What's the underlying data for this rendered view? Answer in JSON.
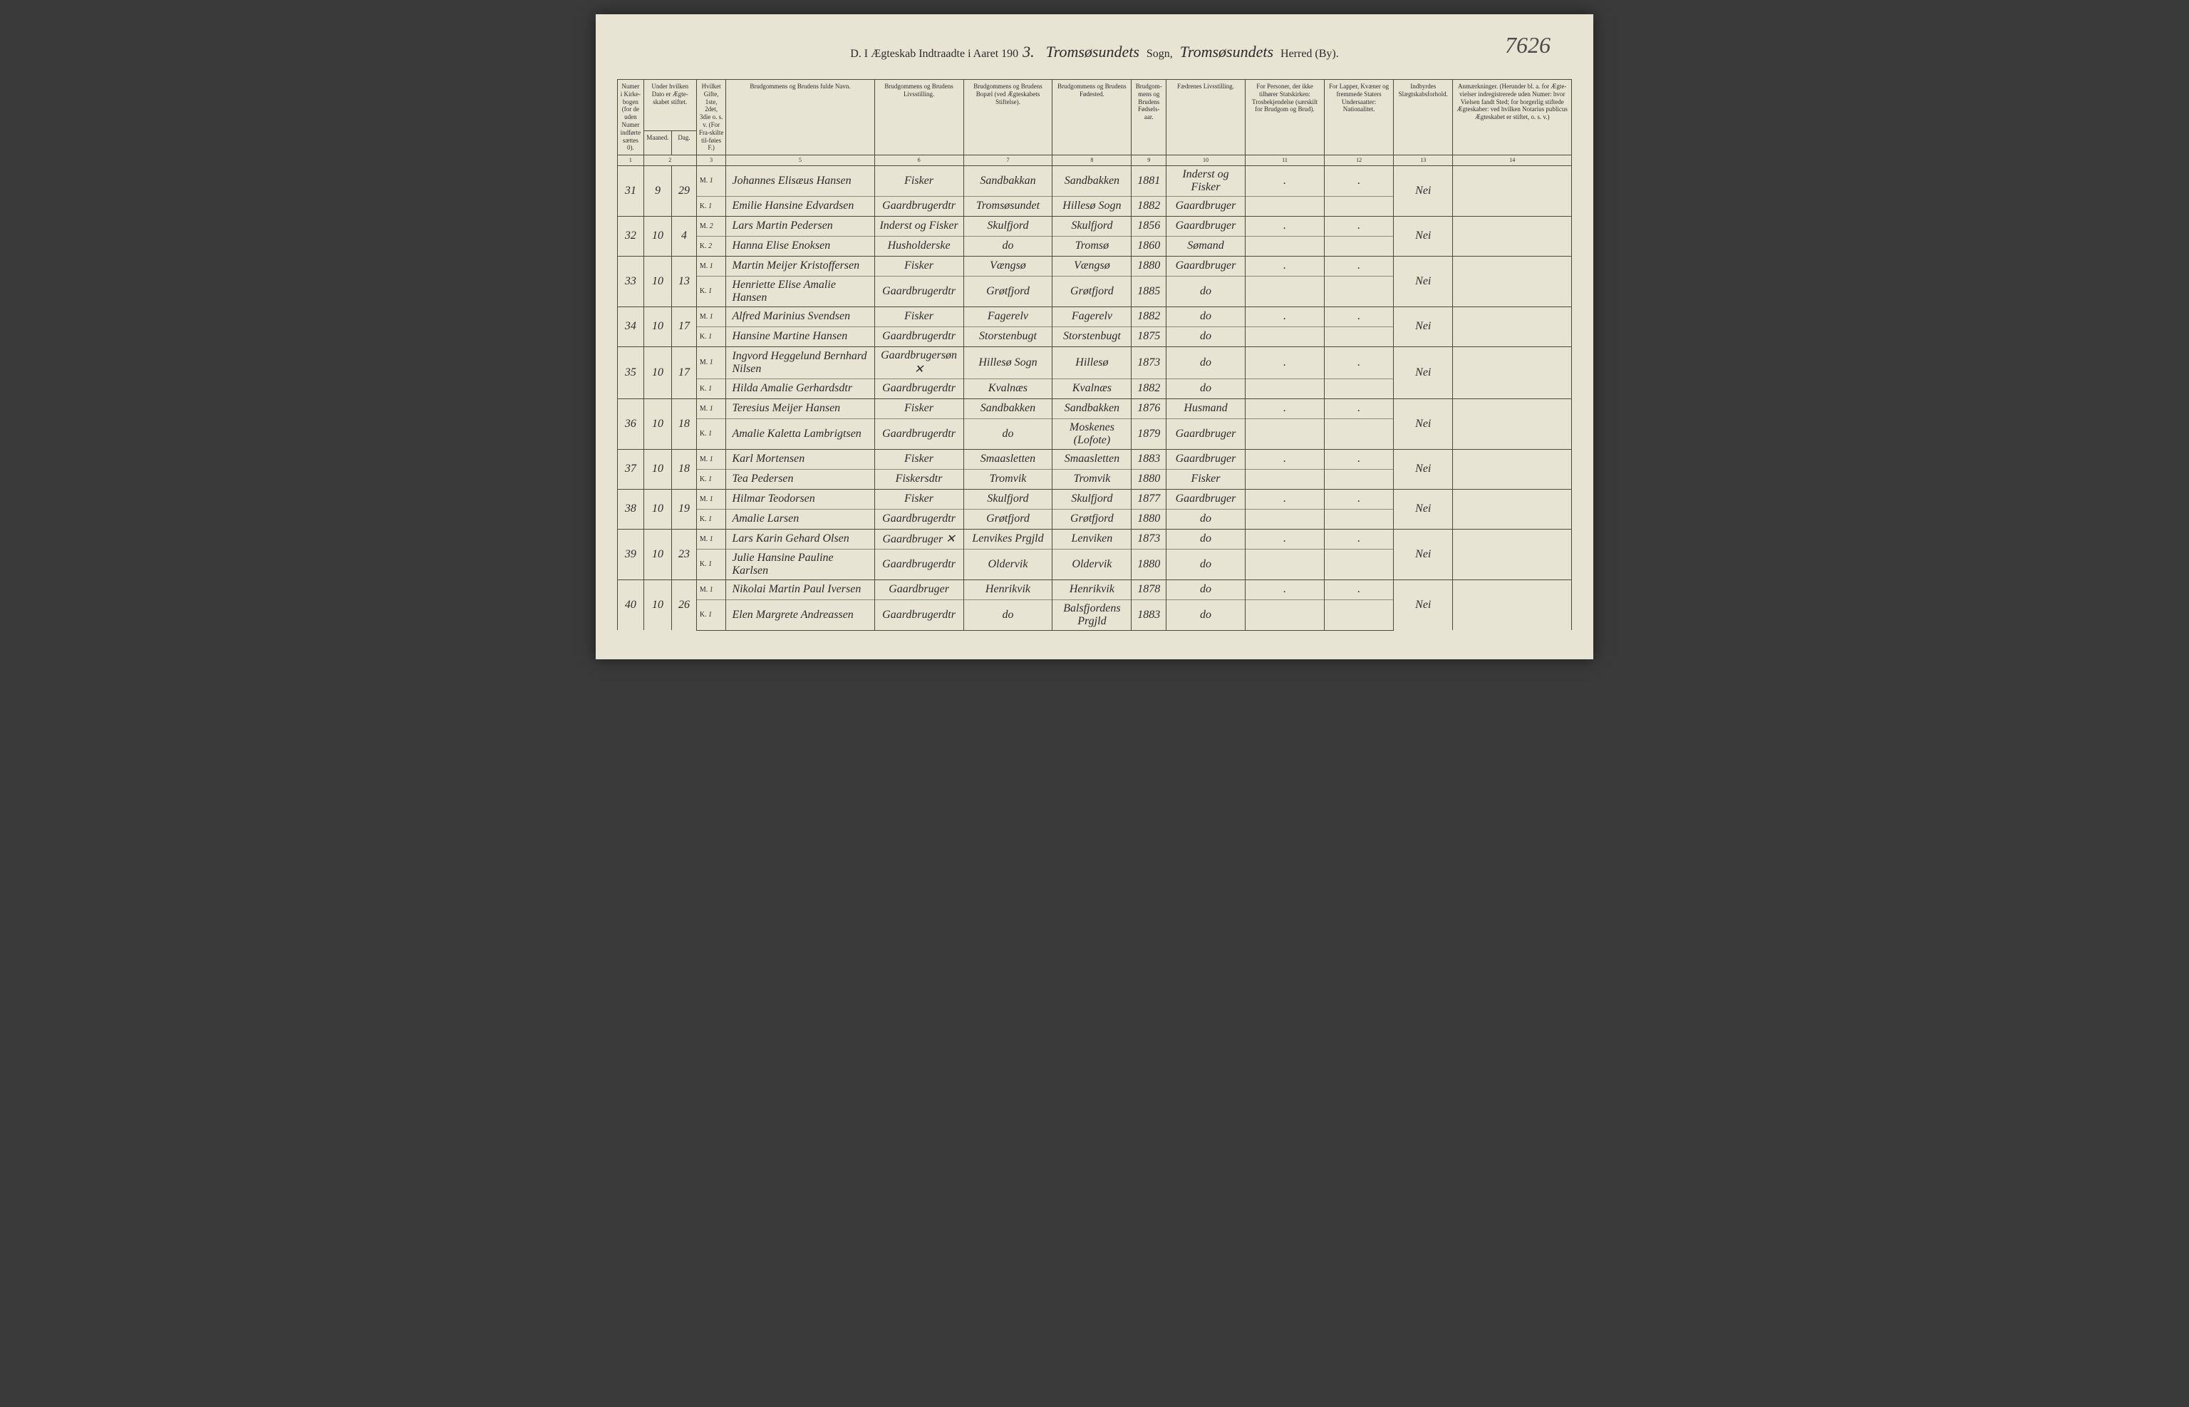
{
  "page_number": "7626",
  "header": {
    "prefix": "D. I Ægteskab Indtraadte i Aaret 190",
    "year_suffix": "3.",
    "sogn_label": "Sogn,",
    "sogn_value": "Tromsøsundets",
    "herred_label": "Herred (By).",
    "herred_value": "Tromsøsundets"
  },
  "columns": {
    "c1": "Numer i Kirke-bogen (for de uden Numer indførte sættes 0).",
    "c2a": "Under hvilken Dato er Ægte-skabet stiftet.",
    "c2_maaned": "Maaned.",
    "c2_dag": "Dag.",
    "c3": "Hvilket Gifte, 1ste, 2det, 3die o. s. v. (For Fra-skilte til-føies F.)",
    "c5": "Brudgommens og Brudens fulde Navn.",
    "c6": "Brudgommens og Brudens Livsstilling.",
    "c7": "Brudgommens og Brudens Bopæl (ved Ægteskabets Stiftelse).",
    "c8": "Brudgommens og Brudens Fødested.",
    "c9": "Brudgom-mens og Brudens Fødsels-aar.",
    "c10": "Fædrenes Livsstilling.",
    "c11": "For Personer, der ikke tilhører Statskirken: Trosbekjendelse (særskilt for Brudgom og Brud).",
    "c12": "For Lapper, Kvæner og fremmede Staters Undersaatter: Nationalitet.",
    "c13": "Indbyrdes Slægtskabsforhold.",
    "c14": "Anmærkninger. (Herunder bl. a. for Ægte-vielser indregistrerede uden Numer: hvor Vielsen fandt Sted; for borgerlig stiftede Ægteskaber: ved hvilken Notarius publicus Ægteskabet er stiftet, o. s. v.)"
  },
  "colnums": [
    "1",
    "2",
    "3",
    "4",
    "5",
    "6",
    "7",
    "8",
    "9",
    "10",
    "11",
    "12",
    "13",
    "14"
  ],
  "entries": [
    {
      "num": "31",
      "maaned": "9",
      "dag": "29",
      "m": {
        "mk": "M.",
        "gifte": "1",
        "navn": "Johannes Elisæus Hansen",
        "livs": "Fisker",
        "bopael": "Sandbakkan",
        "fodested": "Sandbakken",
        "aar": "1881",
        "faed": "Inderst og Fisker",
        "tros": ".",
        "nat": "."
      },
      "k": {
        "mk": "K.",
        "gifte": "1",
        "navn": "Emilie Hansine Edvardsen",
        "livs": "Gaardbrugerdtr",
        "bopael": "Tromsøsundet",
        "fodested": "Hillesø Sogn",
        "aar": "1882",
        "faed": "Gaardbruger",
        "tros": "",
        "nat": ""
      },
      "slaegt": "Nei",
      "anm": ""
    },
    {
      "num": "32",
      "maaned": "10",
      "dag": "4",
      "m": {
        "mk": "M.",
        "gifte": "2",
        "navn": "Lars Martin Pedersen",
        "livs": "Inderst og Fisker",
        "bopael": "Skulfjord",
        "fodested": "Skulfjord",
        "aar": "1856",
        "faed": "Gaardbruger",
        "tros": ".",
        "nat": "."
      },
      "k": {
        "mk": "K.",
        "gifte": "2",
        "navn": "Hanna Elise Enoksen",
        "livs": "Husholderske",
        "bopael": "do",
        "fodested": "Tromsø",
        "aar": "1860",
        "faed": "Sømand",
        "tros": "",
        "nat": ""
      },
      "slaegt": "Nei",
      "anm": ""
    },
    {
      "num": "33",
      "maaned": "10",
      "dag": "13",
      "m": {
        "mk": "M.",
        "gifte": "1",
        "navn": "Martin Meijer Kristoffersen",
        "livs": "Fisker",
        "bopael": "Vængsø",
        "fodested": "Vængsø",
        "aar": "1880",
        "faed": "Gaardbruger",
        "tros": ".",
        "nat": "."
      },
      "k": {
        "mk": "K.",
        "gifte": "1",
        "navn": "Henriette Elise Amalie Hansen",
        "livs": "Gaardbrugerdtr",
        "bopael": "Grøtfjord",
        "fodested": "Grøtfjord",
        "aar": "1885",
        "faed": "do",
        "tros": "",
        "nat": ""
      },
      "slaegt": "Nei",
      "anm": ""
    },
    {
      "num": "34",
      "maaned": "10",
      "dag": "17",
      "m": {
        "mk": "M.",
        "gifte": "1",
        "navn": "Alfred Marinius Svendsen",
        "livs": "Fisker",
        "bopael": "Fagerelv",
        "fodested": "Fagerelv",
        "aar": "1882",
        "faed": "do",
        "tros": ".",
        "nat": "."
      },
      "k": {
        "mk": "K.",
        "gifte": "1",
        "navn": "Hansine Martine Hansen",
        "livs": "Gaardbrugerdtr",
        "bopael": "Storstenbugt",
        "fodested": "Storstenbugt",
        "aar": "1875",
        "faed": "do",
        "tros": "",
        "nat": ""
      },
      "slaegt": "Nei",
      "anm": ""
    },
    {
      "num": "35",
      "maaned": "10",
      "dag": "17",
      "m": {
        "mk": "M.",
        "gifte": "1",
        "navn": "Ingvord Heggelund Bernhard Nilsen",
        "livs": "Gaardbrugersøn ✕",
        "bopael": "Hillesø Sogn",
        "fodested": "Hillesø",
        "aar": "1873",
        "faed": "do",
        "tros": ".",
        "nat": "."
      },
      "k": {
        "mk": "K.",
        "gifte": "1",
        "navn": "Hilda Amalie Gerhardsdtr",
        "livs": "Gaardbrugerdtr",
        "bopael": "Kvalnæs",
        "fodested": "Kvalnæs",
        "aar": "1882",
        "faed": "do",
        "tros": "",
        "nat": ""
      },
      "slaegt": "Nei",
      "anm": ""
    },
    {
      "num": "36",
      "maaned": "10",
      "dag": "18",
      "m": {
        "mk": "M.",
        "gifte": "1",
        "navn": "Teresius Meijer Hansen",
        "livs": "Fisker",
        "bopael": "Sandbakken",
        "fodested": "Sandbakken",
        "aar": "1876",
        "faed": "Husmand",
        "tros": ".",
        "nat": "."
      },
      "k": {
        "mk": "K.",
        "gifte": "1",
        "navn": "Amalie Kaletta Lambrigtsen",
        "livs": "Gaardbrugerdtr",
        "bopael": "do",
        "fodested": "Moskenes (Lofote)",
        "aar": "1879",
        "faed": "Gaardbruger",
        "tros": "",
        "nat": ""
      },
      "slaegt": "Nei",
      "anm": ""
    },
    {
      "num": "37",
      "maaned": "10",
      "dag": "18",
      "m": {
        "mk": "M.",
        "gifte": "1",
        "navn": "Karl Mortensen",
        "livs": "Fisker",
        "bopael": "Smaasletten",
        "fodested": "Smaasletten",
        "aar": "1883",
        "faed": "Gaardbruger",
        "tros": ".",
        "nat": "."
      },
      "k": {
        "mk": "K.",
        "gifte": "1",
        "navn": "Tea Pedersen",
        "livs": "Fiskersdtr",
        "bopael": "Tromvik",
        "fodested": "Tromvik",
        "aar": "1880",
        "faed": "Fisker",
        "tros": "",
        "nat": ""
      },
      "slaegt": "Nei",
      "anm": ""
    },
    {
      "num": "38",
      "maaned": "10",
      "dag": "19",
      "m": {
        "mk": "M.",
        "gifte": "1",
        "navn": "Hilmar Teodorsen",
        "livs": "Fisker",
        "bopael": "Skulfjord",
        "fodested": "Skulfjord",
        "aar": "1877",
        "faed": "Gaardbruger",
        "tros": ".",
        "nat": "."
      },
      "k": {
        "mk": "K.",
        "gifte": "1",
        "navn": "Amalie Larsen",
        "livs": "Gaardbrugerdtr",
        "bopael": "Grøtfjord",
        "fodested": "Grøtfjord",
        "aar": "1880",
        "faed": "do",
        "tros": "",
        "nat": ""
      },
      "slaegt": "Nei",
      "anm": ""
    },
    {
      "num": "39",
      "maaned": "10",
      "dag": "23",
      "m": {
        "mk": "M.",
        "gifte": "1",
        "navn": "Lars Karin Gehard Olsen",
        "livs": "Gaardbruger ✕",
        "bopael": "Lenvikes Prgjld",
        "fodested": "Lenviken",
        "aar": "1873",
        "faed": "do",
        "tros": ".",
        "nat": "."
      },
      "k": {
        "mk": "K.",
        "gifte": "1",
        "navn": "Julie Hansine Pauline Karlsen",
        "livs": "Gaardbrugerdtr",
        "bopael": "Oldervik",
        "fodested": "Oldervik",
        "aar": "1880",
        "faed": "do",
        "tros": "",
        "nat": ""
      },
      "slaegt": "Nei",
      "anm": ""
    },
    {
      "num": "40",
      "maaned": "10",
      "dag": "26",
      "m": {
        "mk": "M.",
        "gifte": "1",
        "navn": "Nikolai Martin Paul Iversen",
        "livs": "Gaardbruger",
        "bopael": "Henrikvik",
        "fodested": "Henrikvik",
        "aar": "1878",
        "faed": "do",
        "tros": ".",
        "nat": "."
      },
      "k": {
        "mk": "K.",
        "gifte": "1",
        "navn": "Elen Margrete Andreassen",
        "livs": "Gaardbrugerdtr",
        "bopael": "do",
        "fodested": "Balsfjordens Prgjld",
        "aar": "1883",
        "faed": "do",
        "tros": "",
        "nat": ""
      },
      "slaegt": "Nei",
      "anm": ""
    }
  ]
}
